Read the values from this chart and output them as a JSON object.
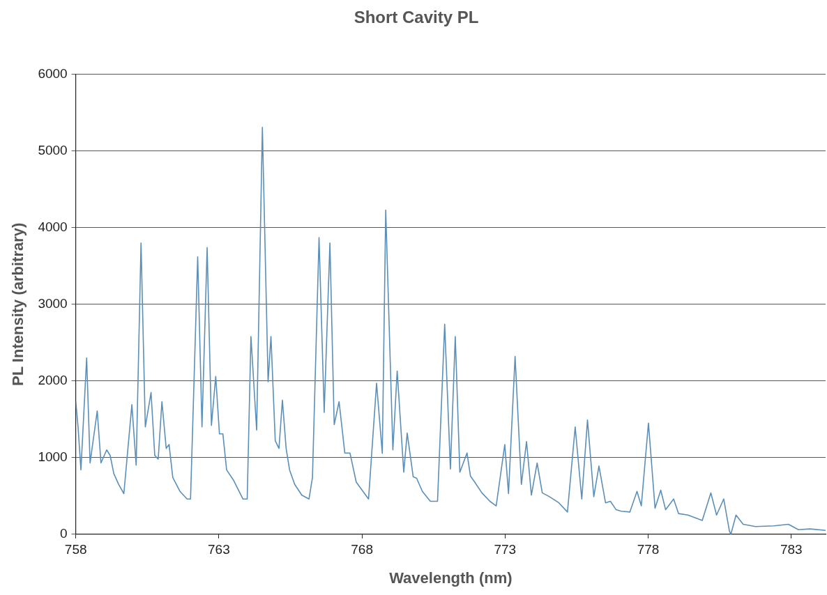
{
  "chart_data": {
    "type": "line",
    "title": "Short Cavity PL",
    "xlabel": "Wavelength (nm)",
    "ylabel": "PL Intensity (arbitrary)",
    "xlim": [
      758,
      784.2
    ],
    "xticks": [
      758,
      763,
      768,
      773,
      778,
      783
    ],
    "ylim": [
      0,
      6000
    ],
    "yticks": [
      0,
      1000,
      2000,
      3000,
      4000,
      5000,
      6000
    ],
    "grid": "y",
    "legend": false,
    "marker": "none",
    "line_style": "solid",
    "series": [
      {
        "color": "#5b8fb8",
        "x": [
          758.0,
          758.08,
          758.18,
          758.38,
          758.5,
          758.75,
          758.88,
          759.08,
          759.2,
          759.33,
          759.5,
          759.68,
          759.96,
          760.11,
          760.28,
          760.43,
          760.63,
          760.76,
          760.88,
          761.01,
          761.16,
          761.26,
          761.39,
          761.64,
          761.89,
          762.01,
          762.26,
          762.41,
          762.59,
          762.74,
          762.89,
          763.02,
          763.14,
          763.27,
          763.52,
          763.84,
          763.99,
          764.12,
          764.32,
          764.52,
          764.72,
          764.82,
          764.97,
          765.1,
          765.22,
          765.35,
          765.47,
          765.65,
          765.9,
          766.15,
          766.27,
          766.5,
          766.68,
          766.88,
          767.03,
          767.2,
          767.4,
          767.58,
          767.8,
          768.23,
          768.51,
          768.71,
          768.83,
          769.08,
          769.23,
          769.46,
          769.58,
          769.79,
          769.91,
          770.11,
          770.39,
          770.64,
          770.89,
          771.09,
          771.26,
          771.42,
          771.67,
          771.79,
          771.94,
          772.19,
          772.47,
          772.69,
          772.99,
          773.12,
          773.35,
          773.57,
          773.75,
          773.92,
          774.12,
          774.3,
          774.55,
          774.88,
          775.18,
          775.45,
          775.68,
          775.88,
          776.1,
          776.28,
          776.51,
          776.68,
          776.88,
          777.06,
          777.36,
          777.61,
          777.76,
          778.01,
          778.24,
          778.44,
          778.61,
          778.89,
          779.06,
          779.39,
          779.89,
          780.19,
          780.39,
          780.64,
          780.84,
          780.89,
          781.07,
          781.32,
          781.75,
          782.4,
          782.9,
          783.25,
          783.65,
          784.2
        ],
        "values": [
          1730,
          1400,
          840,
          2300,
          930,
          1610,
          930,
          1100,
          1030,
          790,
          650,
          530,
          1690,
          900,
          3800,
          1400,
          1850,
          1030,
          980,
          1730,
          1120,
          1170,
          740,
          560,
          460,
          460,
          3620,
          1400,
          3740,
          1420,
          2060,
          1310,
          1310,
          840,
          700,
          460,
          460,
          2580,
          1360,
          5310,
          1990,
          2580,
          1220,
          1120,
          1750,
          1120,
          840,
          650,
          510,
          460,
          740,
          3870,
          1590,
          3800,
          1430,
          1730,
          1060,
          1060,
          680,
          460,
          1970,
          1055,
          4230,
          1100,
          2130,
          810,
          1320,
          750,
          730,
          560,
          430,
          430,
          2740,
          850,
          2580,
          810,
          1060,
          760,
          680,
          540,
          430,
          370,
          1170,
          530,
          2320,
          650,
          1210,
          510,
          930,
          540,
          490,
          410,
          290,
          1400,
          460,
          1490,
          490,
          890,
          410,
          430,
          320,
          300,
          290,
          560,
          370,
          1450,
          340,
          575,
          320,
          460,
          270,
          250,
          180,
          540,
          250,
          460,
          40,
          0,
          250,
          130,
          100,
          110,
          130,
          60,
          70,
          50
        ]
      }
    ]
  }
}
